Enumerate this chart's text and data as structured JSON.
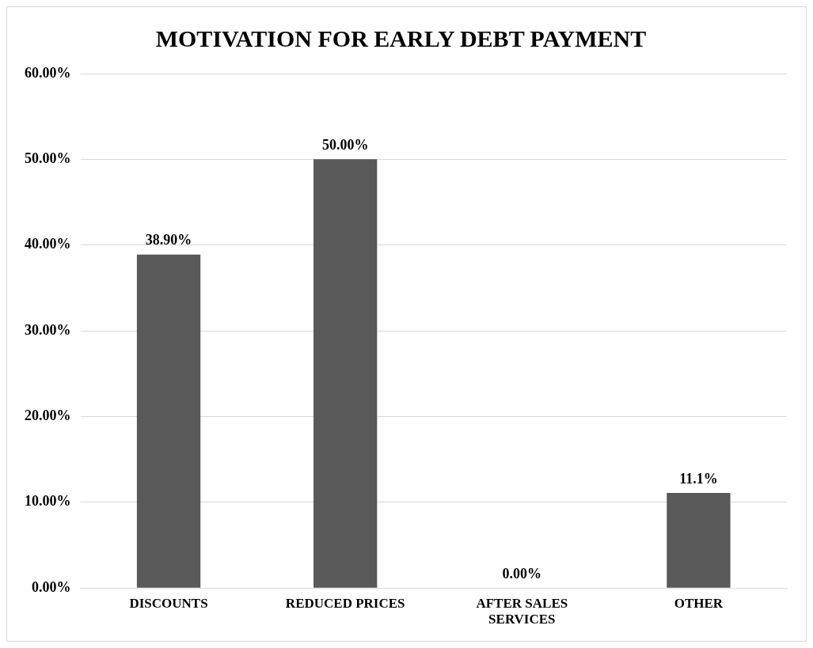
{
  "chart_data": {
    "type": "bar",
    "title": "MOTIVATION FOR EARLY DEBT PAYMENT",
    "categories": [
      "DISCOUNTS",
      "REDUCED PRICES",
      "AFTER SALES SERVICES",
      "OTHER"
    ],
    "values": [
      38.9,
      50,
      0,
      11.1
    ],
    "value_labels": [
      "38.90%",
      "50.00%",
      "0.00%",
      "11.1%"
    ],
    "color": "#595959",
    "ylim": [
      0,
      60
    ],
    "yticks": [
      {
        "value": 0,
        "label": "0.00%"
      },
      {
        "value": 10,
        "label": "10.00%"
      },
      {
        "value": 20,
        "label": "20.00%"
      },
      {
        "value": 30,
        "label": "30.00%"
      },
      {
        "value": 40,
        "label": "40.00%"
      },
      {
        "value": 50,
        "label": "50.00%"
      },
      {
        "value": 60,
        "label": "60.00%"
      }
    ],
    "grid": "y",
    "legend": false
  }
}
